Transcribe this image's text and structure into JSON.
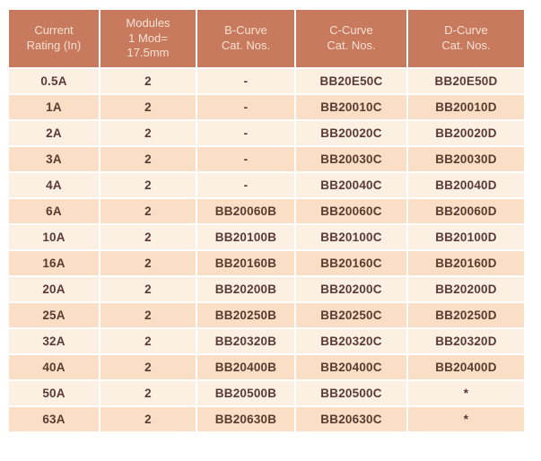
{
  "colors": {
    "header_bg": "#c87a5e",
    "header_text": "#f6e1d3",
    "row_light": "#fcf0e2",
    "row_dark": "#fadec5",
    "cell_text": "#5c3a31",
    "gap": "#ffffff"
  },
  "table": {
    "columns": [
      {
        "id": "current-rating",
        "label": "Current\nRating (In)"
      },
      {
        "id": "modules",
        "label": "Modules\n1 Mod=\n17.5mm"
      },
      {
        "id": "b-curve",
        "label": "B-Curve\nCat. Nos."
      },
      {
        "id": "c-curve",
        "label": "C-Curve\nCat. Nos."
      },
      {
        "id": "d-curve",
        "label": "D-Curve\nCat. Nos."
      }
    ],
    "rows": [
      [
        "0.5A",
        "2",
        "-",
        "BB20E50C",
        "BB20E50D"
      ],
      [
        "1A",
        "2",
        "-",
        "BB20010C",
        "BB20010D"
      ],
      [
        "2A",
        "2",
        "-",
        "BB20020C",
        "BB20020D"
      ],
      [
        "3A",
        "2",
        "-",
        "BB20030C",
        "BB20030D"
      ],
      [
        "4A",
        "2",
        "-",
        "BB20040C",
        "BB20040D"
      ],
      [
        "6A",
        "2",
        "BB20060B",
        "BB20060C",
        "BB20060D"
      ],
      [
        "10A",
        "2",
        "BB20100B",
        "BB20100C",
        "BB20100D"
      ],
      [
        "16A",
        "2",
        "BB20160B",
        "BB20160C",
        "BB20160D"
      ],
      [
        "20A",
        "2",
        "BB20200B",
        "BB20200C",
        "BB20200D"
      ],
      [
        "25A",
        "2",
        "BB20250B",
        "BB20250C",
        "BB20250D"
      ],
      [
        "32A",
        "2",
        "BB20320B",
        "BB20320C",
        "BB20320D"
      ],
      [
        "40A",
        "2",
        "BB20400B",
        "BB20400C",
        "BB20400D"
      ],
      [
        "50A",
        "2",
        "BB20500B",
        "BB20500C",
        "*"
      ],
      [
        "63A",
        "2",
        "BB20630B",
        "BB20630C",
        "*"
      ]
    ]
  }
}
